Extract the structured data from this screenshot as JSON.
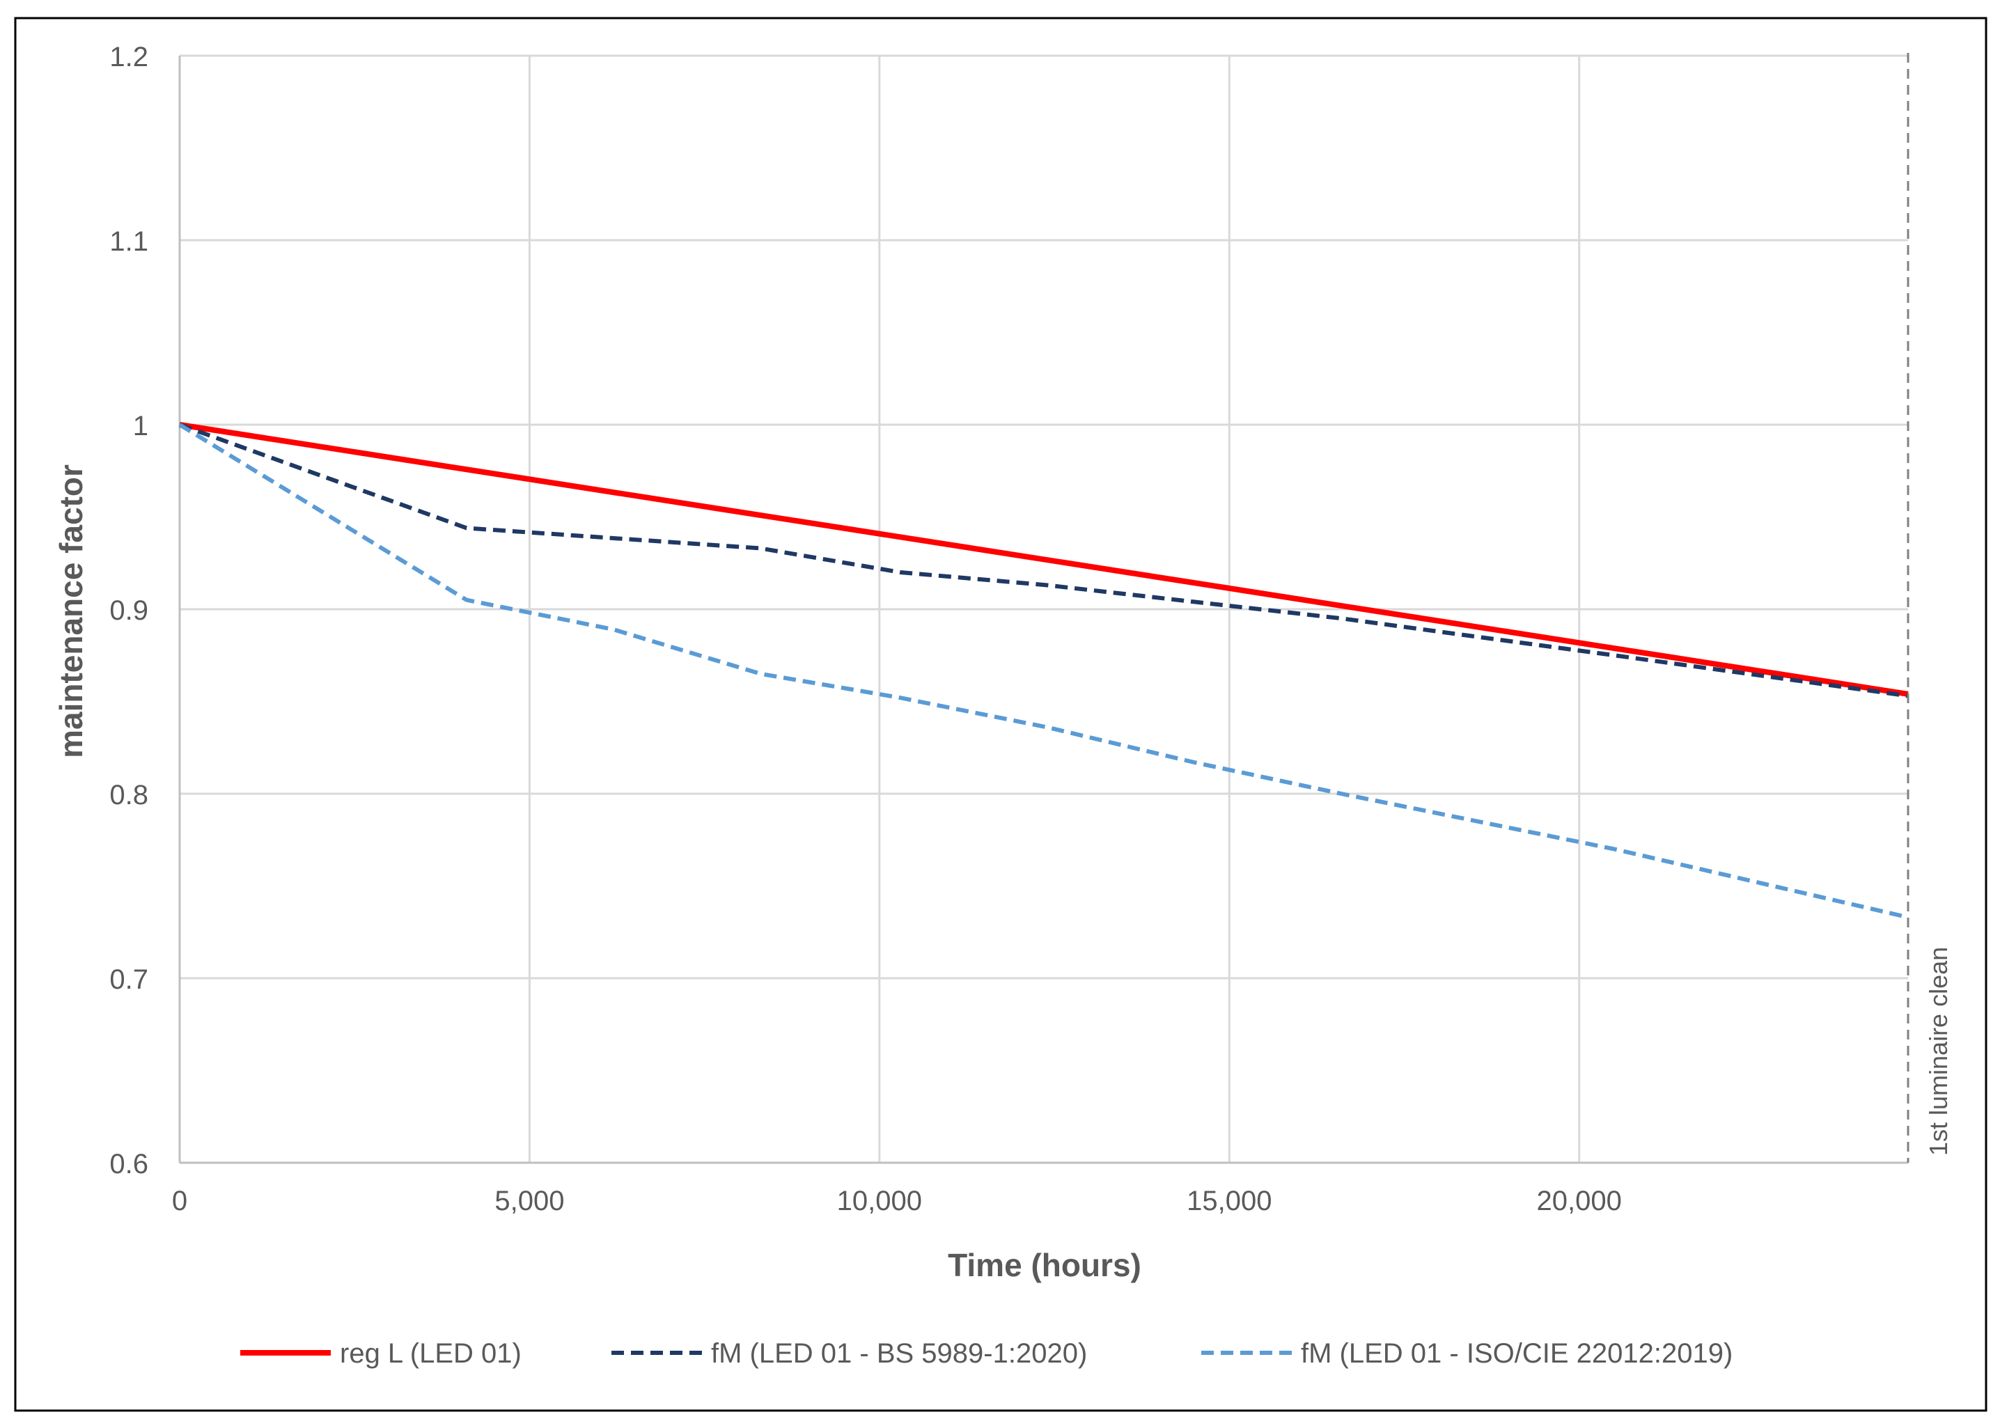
{
  "chart_data": {
    "type": "line",
    "title": "",
    "xlabel": "Time (hours)",
    "ylabel": "maintenance factor",
    "xlim": [
      0,
      24700
    ],
    "ylim": [
      0.6,
      1.2
    ],
    "x_ticks": [
      0,
      5000,
      10000,
      15000,
      20000
    ],
    "x_tick_labels": [
      "0",
      "5,000",
      "10,000",
      "15,000",
      "20,000"
    ],
    "y_ticks": [
      0.6,
      0.7,
      0.8,
      0.9,
      1.0,
      1.1,
      1.2
    ],
    "y_tick_labels": [
      "0.6",
      "0.7",
      "0.8",
      "0.9",
      "1",
      "1.1",
      "1.2"
    ],
    "grid": true,
    "legend_position": "bottom",
    "annotations": [
      {
        "text": "1st luminaire clean",
        "x": 24700,
        "style": "dashed vertical line"
      }
    ],
    "series": [
      {
        "name": "reg L (LED 01)",
        "color": "#ff0000",
        "style": "solid",
        "x": [
          0,
          24700
        ],
        "y": [
          1.0,
          0.854
        ]
      },
      {
        "name": "fM (LED 01 - BS 5989-1:2020)",
        "color": "#1f3864",
        "style": "dashed",
        "x": [
          0,
          4100,
          8300,
          10300,
          12400,
          14500,
          16600,
          20500,
          24700
        ],
        "y": [
          1.0,
          0.944,
          0.933,
          0.92,
          0.913,
          0.904,
          0.895,
          0.875,
          0.853
        ]
      },
      {
        "name": "fM (LED 01 - ISO/CIE 22012:2019)",
        "color": "#5b9bd5",
        "style": "dashed",
        "x": [
          0,
          4100,
          6200,
          8300,
          10300,
          12400,
          14500,
          16600,
          20500,
          24700
        ],
        "y": [
          1.0,
          0.905,
          0.889,
          0.865,
          0.852,
          0.836,
          0.817,
          0.8,
          0.77,
          0.733
        ]
      }
    ]
  }
}
